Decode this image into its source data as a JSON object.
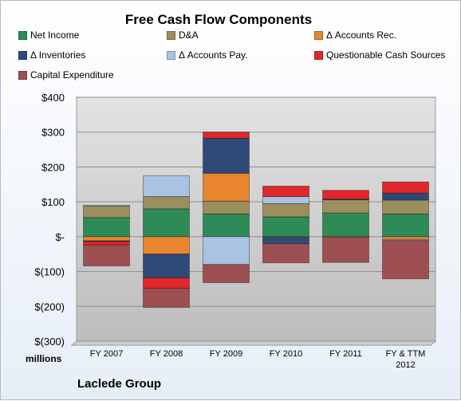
{
  "chart_data": {
    "type": "bar",
    "stacked": true,
    "title": "Free Cash Flow Components",
    "units_label": "millions",
    "company": "Laclede Group",
    "categories": [
      [
        "FY 2007"
      ],
      [
        "FY 2008"
      ],
      [
        "FY 2009"
      ],
      [
        "FY 2010"
      ],
      [
        "FY 2011"
      ],
      [
        "FY & TTM",
        "2012"
      ]
    ],
    "ylim": [
      -300,
      400
    ],
    "yticks": [
      400,
      300,
      200,
      100,
      0,
      -100,
      -200,
      -300
    ],
    "ytick_labels": [
      "$400",
      "$300",
      "$200",
      "$100",
      "$-",
      "$(100)",
      "$(200)",
      "$(300)"
    ],
    "grid": true,
    "legend_position": "top",
    "series": [
      {
        "name": "Net Income",
        "color": "#2e8b57",
        "values": [
          55,
          80,
          65,
          57,
          68,
          65
        ]
      },
      {
        "name": "D&A",
        "color": "#9c8f5e",
        "values": [
          33,
          35,
          37,
          38,
          38,
          40
        ]
      },
      {
        "name": "Δ Accounts Rec.",
        "color": "#e8852e",
        "values": [
          -12,
          -50,
          80,
          -2,
          -2,
          -8
        ]
      },
      {
        "name": "Δ Inventories",
        "color": "#2e4a78",
        "values": [
          -2,
          -68,
          100,
          -18,
          2,
          20
        ]
      },
      {
        "name": "Δ Accounts Pay.",
        "color": "#a9c3e3",
        "values": [
          2,
          60,
          -80,
          20,
          0,
          -3
        ]
      },
      {
        "name": "Questionable Cash Sources",
        "color": "#e0282a",
        "values": [
          -10,
          -30,
          18,
          30,
          25,
          32
        ]
      },
      {
        "name": "Capital Expenditure",
        "color": "#9e4f52",
        "values": [
          -60,
          -55,
          -52,
          -55,
          -72,
          -110
        ]
      }
    ]
  }
}
